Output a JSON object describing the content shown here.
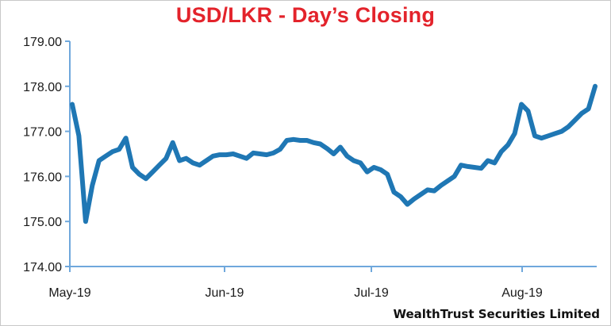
{
  "chart_data": {
    "type": "line",
    "title": "USD/LKR - Day’s Closing",
    "source": "WealthTrust Securities Limited",
    "xlabel": "",
    "ylabel": "",
    "ylim": [
      174.0,
      179.0
    ],
    "yticks": [
      "174.00",
      "175.00",
      "176.00",
      "177.00",
      "178.00",
      "179.00"
    ],
    "xticks": [
      "May-19",
      "Jun-19",
      "Jul-19",
      "Aug-19"
    ],
    "grid": false,
    "colors": {
      "line": "#1f77b4",
      "title": "#e3232b",
      "axis": "#6fa8dc"
    },
    "series": [
      {
        "values": [
          177.6,
          176.9,
          175.0,
          175.8,
          176.35,
          176.45,
          176.55,
          176.6,
          176.85,
          176.2,
          176.05,
          175.95,
          176.1,
          176.25,
          176.4,
          176.75,
          176.35,
          176.4,
          176.3,
          176.25,
          176.35,
          176.45,
          176.48,
          176.48,
          176.5,
          176.45,
          176.4,
          176.52,
          176.5,
          176.48,
          176.52,
          176.6,
          176.8,
          176.82,
          176.8,
          176.8,
          176.75,
          176.72,
          176.62,
          176.5,
          176.65,
          176.45,
          176.35,
          176.3,
          176.1,
          176.2,
          176.15,
          176.05,
          175.65,
          175.55,
          175.38,
          175.5,
          175.6,
          175.7,
          175.68,
          175.8,
          175.9,
          176.0,
          176.25,
          176.22,
          176.2,
          176.18,
          176.35,
          176.3,
          176.55,
          176.7,
          176.95,
          177.6,
          177.45,
          176.9,
          176.85,
          176.9,
          176.95,
          177.0,
          177.1,
          177.25,
          177.4,
          177.5,
          178.0
        ]
      }
    ]
  }
}
